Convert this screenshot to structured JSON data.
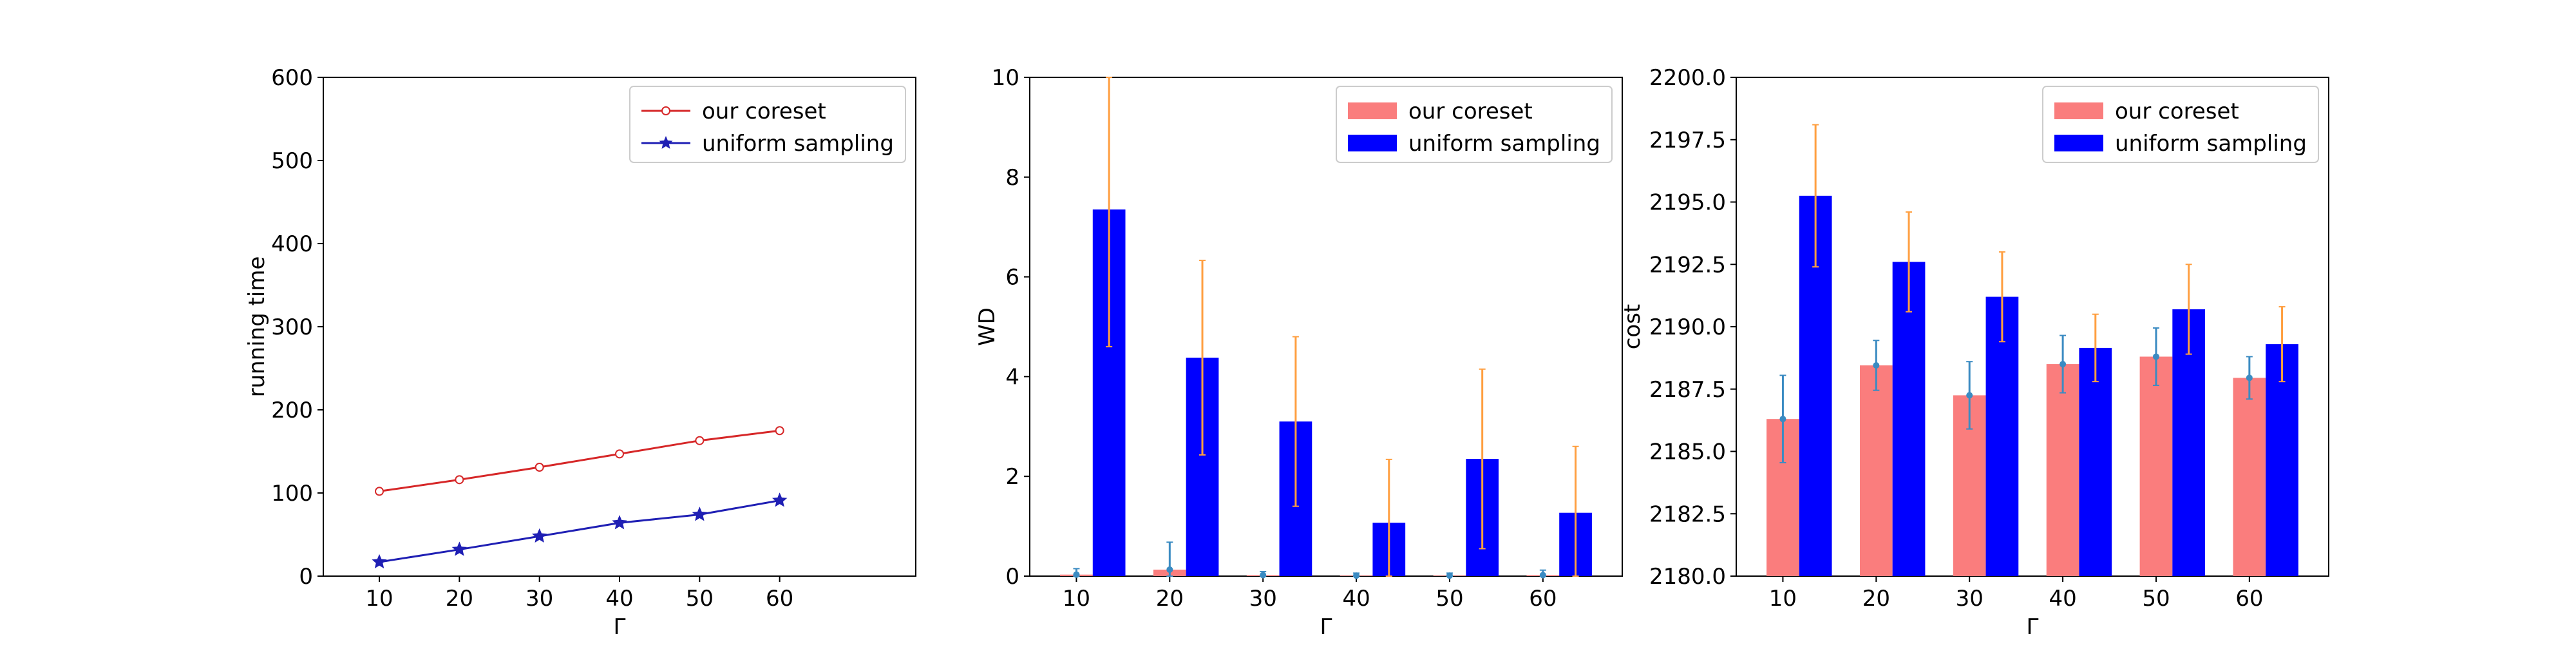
{
  "chart_data": [
    {
      "type": "line",
      "title": "",
      "xlabel": "Γ",
      "ylabel": "running time",
      "xlim": [
        3,
        77
      ],
      "ylim": [
        0,
        600
      ],
      "xticks": [
        "10",
        "20",
        "30",
        "40",
        "50",
        "60"
      ],
      "yticks": [
        "0",
        "100",
        "200",
        "300",
        "400",
        "500",
        "600"
      ],
      "x": [
        10,
        20,
        30,
        40,
        50,
        60
      ],
      "legend_position": "top-right",
      "grid": false,
      "series": [
        {
          "name": "our coreset",
          "color": "#d62728",
          "marker": "circle",
          "values": [
            102,
            116,
            131,
            147,
            163,
            175
          ]
        },
        {
          "name": "uniform sampling",
          "color": "#1f1fb4",
          "marker": "star",
          "values": [
            17,
            32,
            48,
            64,
            74,
            91
          ]
        }
      ]
    },
    {
      "type": "bar",
      "title": "",
      "xlabel": "Γ",
      "ylabel": "WD",
      "ylim": [
        0,
        10
      ],
      "yticks": [
        "0",
        "2",
        "4",
        "6",
        "8",
        "10"
      ],
      "categories": [
        "10",
        "20",
        "30",
        "40",
        "50",
        "60"
      ],
      "legend_position": "top-right",
      "grid": false,
      "series": [
        {
          "name": "our coreset",
          "color": "#fa7d7d",
          "values": [
            0.03,
            0.13,
            0.02,
            0.01,
            0.01,
            0.02
          ],
          "errors": [
            0.12,
            0.55,
            0.07,
            0.05,
            0.05,
            0.1
          ],
          "error_color": "#3b8bc2"
        },
        {
          "name": "uniform sampling",
          "color": "#0000ff",
          "values": [
            7.35,
            4.38,
            3.1,
            1.07,
            2.35,
            1.27
          ],
          "errors": [
            2.75,
            1.95,
            1.7,
            1.27,
            1.8,
            1.33
          ],
          "error_color": "#ff9f40"
        }
      ]
    },
    {
      "type": "bar",
      "title": "",
      "xlabel": "Γ",
      "ylabel": "cost",
      "ylim": [
        2180.0,
        2200.0
      ],
      "yticks": [
        "2180.0",
        "2182.5",
        "2185.0",
        "2187.5",
        "2190.0",
        "2192.5",
        "2195.0",
        "2197.5",
        "2200.0"
      ],
      "categories": [
        "10",
        "20",
        "30",
        "40",
        "50",
        "60"
      ],
      "legend_position": "top-right",
      "grid": false,
      "series": [
        {
          "name": "our coreset",
          "color": "#fa7d7d",
          "values": [
            2186.3,
            2188.45,
            2187.25,
            2188.5,
            2188.8,
            2187.95
          ],
          "errors": [
            1.75,
            1.0,
            1.35,
            1.15,
            1.15,
            0.85
          ],
          "error_color": "#3b8bc2"
        },
        {
          "name": "uniform sampling",
          "color": "#0000ff",
          "values": [
            2195.25,
            2192.6,
            2191.2,
            2189.15,
            2190.7,
            2189.3
          ],
          "errors": [
            2.85,
            2.0,
            1.8,
            1.35,
            1.8,
            1.5
          ],
          "error_color": "#ff9f40"
        }
      ]
    }
  ]
}
